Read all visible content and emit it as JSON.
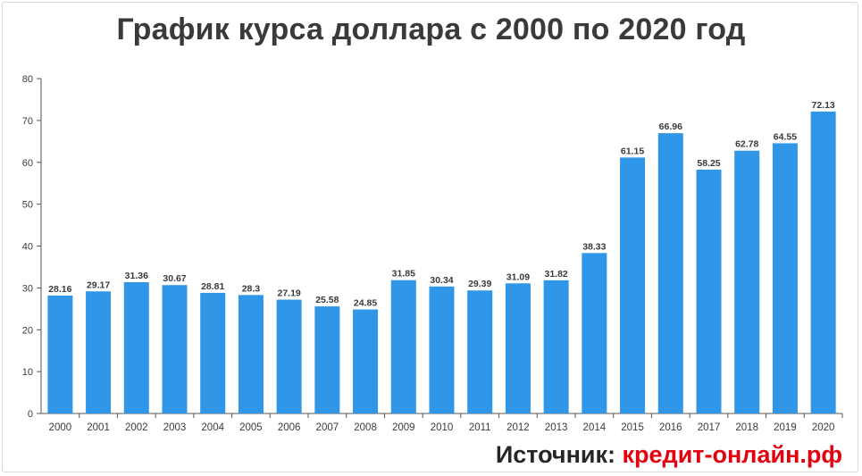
{
  "title": "График курса доллара с 2000 по 2020 год",
  "source": {
    "label": "Источник:",
    "link": "кредит-онлайн.рф"
  },
  "colors": {
    "bar": "#2f96e8",
    "axis": "#555555",
    "text": "#3a3a3a",
    "source_link": "#e3000f"
  },
  "chart_data": {
    "type": "bar",
    "title": "График курса доллара с 2000 по 2020 год",
    "xlabel": "",
    "ylabel": "",
    "ylim": [
      0,
      80
    ],
    "yticks": [
      0,
      10,
      20,
      30,
      40,
      50,
      60,
      70,
      80
    ],
    "grid": false,
    "legend": "none",
    "categories": [
      "2000",
      "2001",
      "2002",
      "2003",
      "2004",
      "2005",
      "2006",
      "2007",
      "2008",
      "2009",
      "2010",
      "2011",
      "2012",
      "2013",
      "2014",
      "2015",
      "2016",
      "2017",
      "2018",
      "2019",
      "2020"
    ],
    "values": [
      28.16,
      29.17,
      31.36,
      30.67,
      28.81,
      28.3,
      27.19,
      25.58,
      24.85,
      31.85,
      30.34,
      29.39,
      31.09,
      31.82,
      38.33,
      61.15,
      66.96,
      58.25,
      62.78,
      64.55,
      72.13
    ],
    "value_labels": [
      "28.16",
      "29.17",
      "31.36",
      "30.67",
      "28.81",
      "28.3",
      "27.19",
      "25.58",
      "24.85",
      "31.85",
      "30.34",
      "29.39",
      "31.09",
      "31.82",
      "38.33",
      "61.15",
      "66.96",
      "58.25",
      "62.78",
      "64.55",
      "72.13"
    ]
  }
}
